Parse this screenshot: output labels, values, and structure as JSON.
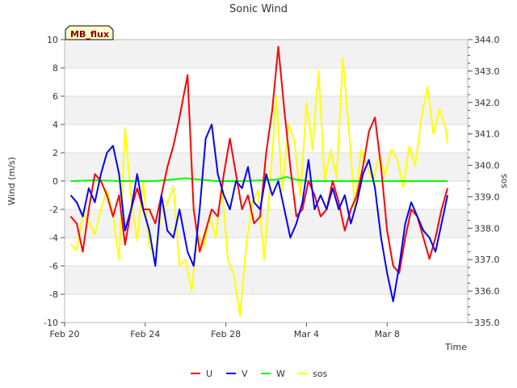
{
  "chart_data": {
    "type": "line",
    "title": "Sonic Wind",
    "badge": "MB_flux",
    "xlabel": "Time",
    "ylabel": "Wind (m/s)",
    "y2label": "sos",
    "x_start": "Feb 20",
    "xlim_days": [
      0,
      20
    ],
    "ylim": [
      -10,
      10
    ],
    "y2lim": [
      335.0,
      344.0
    ],
    "grid": true,
    "legend_position": "bottom",
    "x_ticks": [
      {
        "day": 0,
        "label": "Feb 20"
      },
      {
        "day": 4,
        "label": "Feb 24"
      },
      {
        "day": 8,
        "label": "Feb 28"
      },
      {
        "day": 12,
        "label": "Mar 4"
      },
      {
        "day": 16,
        "label": "Mar 8"
      }
    ],
    "y_ticks": [
      {
        "value": -10,
        "label": "-10"
      },
      {
        "value": -8,
        "label": "-8"
      },
      {
        "value": -6,
        "label": "-6"
      },
      {
        "value": -4,
        "label": "-4"
      },
      {
        "value": -2,
        "label": "-2"
      },
      {
        "value": 0,
        "label": "0"
      },
      {
        "value": 2,
        "label": "2"
      },
      {
        "value": 4,
        "label": "4"
      },
      {
        "value": 6,
        "label": "6"
      },
      {
        "value": 8,
        "label": "8"
      },
      {
        "value": 10,
        "label": "10"
      }
    ],
    "y2_ticks": [
      {
        "value": 335.0,
        "label": "335.0"
      },
      {
        "value": 336.0,
        "label": "336.0"
      },
      {
        "value": 337.0,
        "label": "337.0"
      },
      {
        "value": 338.0,
        "label": "338.0"
      },
      {
        "value": 339.0,
        "label": "339.0"
      },
      {
        "value": 340.0,
        "label": "340.0"
      },
      {
        "value": 341.0,
        "label": "341.0"
      },
      {
        "value": 342.0,
        "label": "342.0"
      },
      {
        "value": 343.0,
        "label": "343.0"
      },
      {
        "value": 344.0,
        "label": "344.0"
      }
    ],
    "series": [
      {
        "name": "U",
        "color": "#ff0000",
        "axis": "left",
        "x": [
          0.3,
          0.6,
          0.9,
          1.2,
          1.5,
          1.8,
          2.1,
          2.4,
          2.7,
          3.0,
          3.3,
          3.6,
          3.9,
          4.2,
          4.5,
          4.8,
          5.1,
          5.4,
          5.7,
          5.9,
          6.1,
          6.4,
          6.7,
          7.0,
          7.3,
          7.6,
          7.9,
          8.2,
          8.5,
          8.8,
          9.1,
          9.4,
          9.7,
          10.0,
          10.3,
          10.6,
          10.9,
          11.2,
          11.5,
          11.8,
          12.1,
          12.4,
          12.7,
          13.0,
          13.3,
          13.6,
          13.9,
          14.2,
          14.5,
          14.8,
          15.1,
          15.4,
          15.7,
          16.0,
          16.3,
          16.6,
          16.9,
          17.2,
          17.5,
          17.8,
          18.1,
          18.4,
          18.7,
          19.0
        ],
        "y": [
          -2.5,
          -3.0,
          -5.0,
          -2.0,
          0.5,
          0.0,
          -1.0,
          -2.5,
          -1.0,
          -4.5,
          -2.0,
          -0.5,
          -2.0,
          -2.0,
          -3.0,
          -1.0,
          1.0,
          2.5,
          4.5,
          6.0,
          7.5,
          -2.0,
          -5.0,
          -3.5,
          -2.0,
          -2.5,
          0.5,
          3.0,
          0.5,
          -2.0,
          -1.0,
          -3.0,
          -2.5,
          2.0,
          5.0,
          9.5,
          5.0,
          1.0,
          -2.5,
          -2.0,
          0.0,
          -1.0,
          -2.5,
          -2.0,
          0.0,
          -1.5,
          -3.5,
          -2.0,
          -1.0,
          1.0,
          3.5,
          4.5,
          1.0,
          -3.5,
          -6.0,
          -6.5,
          -4.0,
          -2.0,
          -2.5,
          -4.0,
          -5.5,
          -4.0,
          -2.0,
          -0.5
        ]
      },
      {
        "name": "V",
        "color": "#0000ff",
        "axis": "left",
        "x": [
          0.3,
          0.6,
          0.9,
          1.2,
          1.5,
          1.8,
          2.1,
          2.4,
          2.7,
          3.0,
          3.3,
          3.6,
          3.9,
          4.2,
          4.5,
          4.8,
          5.1,
          5.4,
          5.7,
          5.9,
          6.1,
          6.4,
          6.7,
          7.0,
          7.3,
          7.6,
          7.9,
          8.2,
          8.5,
          8.8,
          9.1,
          9.4,
          9.7,
          10.0,
          10.3,
          10.6,
          10.9,
          11.2,
          11.5,
          11.8,
          12.1,
          12.4,
          12.7,
          13.0,
          13.3,
          13.6,
          13.9,
          14.2,
          14.5,
          14.8,
          15.1,
          15.4,
          15.7,
          16.0,
          16.3,
          16.6,
          16.9,
          17.2,
          17.5,
          17.8,
          18.1,
          18.4,
          18.7,
          19.0
        ],
        "y": [
          -1.0,
          -1.5,
          -2.5,
          -0.5,
          -1.5,
          0.5,
          2.0,
          2.5,
          0.5,
          -3.5,
          -2.0,
          0.5,
          -2.0,
          -3.5,
          -6.0,
          -1.0,
          -3.5,
          -4.0,
          -2.0,
          -3.5,
          -5.0,
          -6.0,
          -2.0,
          3.0,
          4.0,
          0.5,
          -1.0,
          -2.0,
          0.0,
          -0.5,
          1.0,
          -1.5,
          -2.0,
          0.5,
          -1.0,
          0.0,
          -2.0,
          -4.0,
          -3.0,
          -1.5,
          1.5,
          -2.0,
          -1.0,
          -2.0,
          -0.5,
          -2.0,
          -1.0,
          -3.0,
          -1.5,
          0.5,
          1.5,
          -0.5,
          -4.0,
          -6.5,
          -8.5,
          -6.0,
          -3.0,
          -1.5,
          -2.5,
          -3.5,
          -4.0,
          -5.0,
          -3.0,
          -1.0
        ]
      },
      {
        "name": "W",
        "color": "#00ff00",
        "axis": "left",
        "x": [
          0.3,
          1.5,
          3.0,
          4.5,
          6.0,
          7.5,
          9.0,
          10.5,
          11.0,
          11.5,
          12.0,
          13.5,
          15.0,
          16.5,
          18.0,
          19.0
        ],
        "y": [
          0.0,
          0.05,
          0.0,
          0.0,
          0.2,
          0.0,
          0.0,
          0.1,
          0.3,
          0.1,
          0.0,
          0.0,
          0.0,
          0.0,
          0.0,
          0.0
        ]
      },
      {
        "name": "sos",
        "color": "#ffff00",
        "axis": "right",
        "x": [
          0.3,
          0.6,
          0.9,
          1.2,
          1.5,
          1.8,
          2.1,
          2.4,
          2.7,
          3.0,
          3.3,
          3.6,
          3.9,
          4.2,
          4.5,
          4.8,
          5.1,
          5.4,
          5.7,
          6.0,
          6.3,
          6.6,
          6.9,
          7.2,
          7.5,
          7.8,
          8.1,
          8.4,
          8.7,
          9.0,
          9.3,
          9.6,
          9.9,
          10.2,
          10.5,
          10.8,
          11.1,
          11.4,
          11.7,
          12.0,
          12.3,
          12.6,
          12.9,
          13.2,
          13.5,
          13.8,
          14.1,
          14.4,
          14.7,
          15.0,
          15.3,
          15.6,
          15.9,
          16.2,
          16.5,
          16.8,
          17.1,
          17.4,
          17.7,
          18.0,
          18.3,
          18.6,
          18.9,
          19.0
        ],
        "y": [
          337.5,
          337.3,
          338.5,
          338.2,
          337.8,
          338.6,
          339.2,
          338.4,
          337.0,
          341.2,
          339.0,
          337.6,
          339.5,
          337.4,
          337.2,
          338.5,
          338.8,
          339.3,
          336.8,
          337.0,
          336.0,
          337.8,
          337.4,
          338.4,
          337.7,
          339.4,
          337.0,
          336.5,
          335.2,
          337.4,
          338.8,
          339.2,
          337.0,
          339.5,
          342.2,
          339.2,
          341.3,
          340.8,
          339.0,
          342.0,
          340.5,
          343.0,
          339.5,
          340.5,
          339.6,
          343.4,
          341.2,
          338.6,
          340.5,
          340.0,
          339.5,
          340.3,
          339.7,
          340.5,
          340.2,
          339.3,
          340.6,
          340.0,
          341.5,
          342.5,
          341.0,
          341.8,
          341.2,
          340.7
        ]
      }
    ]
  }
}
